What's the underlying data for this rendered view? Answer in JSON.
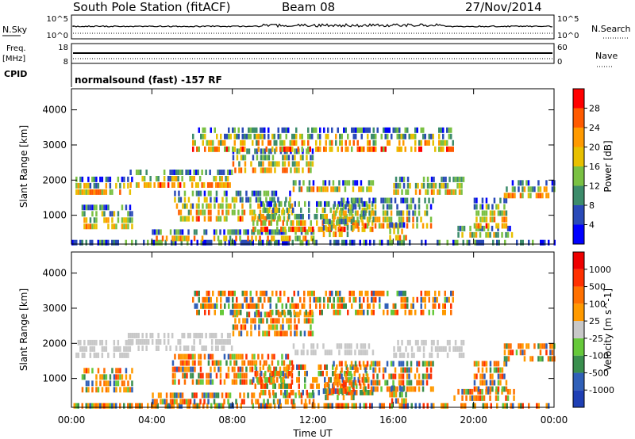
{
  "header": {
    "station": "South Pole Station (fitACF)",
    "beam": "Beam 08",
    "date": "27/Nov/2014"
  },
  "top_panels": {
    "nsky_label": "N.Sky",
    "nsearch_label": "N.Search",
    "freq_label": "Freq.",
    "freq_unit": "[MHz]",
    "nave_label": "Nave",
    "cpid_label": "CPID",
    "cpid_text": "normalsound (fast) -157 RF",
    "noise_ticks": [
      "10^5",
      "10^0"
    ],
    "freq_ticks": [
      "18",
      "8"
    ],
    "nave_ticks": [
      "60",
      "0"
    ]
  },
  "chart_data": [
    {
      "type": "heatmap",
      "quantity": "Power",
      "xlabel": "",
      "ylabel": "Slant Range [km]",
      "xlim": [
        0,
        24
      ],
      "ylim": [
        180,
        4600
      ],
      "xticks": [
        "00:00",
        "04:00",
        "08:00",
        "12:00",
        "16:00",
        "20:00",
        "00:00"
      ],
      "yticks": [
        1000,
        2000,
        3000,
        4000
      ],
      "colorbar": {
        "label": "Power [dB]",
        "ticks": [
          4,
          8,
          12,
          16,
          20,
          24,
          28
        ],
        "range": [
          0,
          32
        ],
        "colors": [
          "#0000ff",
          "#2a4ab8",
          "#3d8c6b",
          "#7ac143",
          "#e8c000",
          "#ff9a00",
          "#ff5a00",
          "#ff0000"
        ]
      }
    },
    {
      "type": "heatmap",
      "quantity": "Velocity",
      "xlabel": "Time UT",
      "ylabel": "Slant Range [km]",
      "xlim": [
        0,
        24
      ],
      "ylim": [
        180,
        4600
      ],
      "xticks": [
        "00:00",
        "04:00",
        "08:00",
        "12:00",
        "16:00",
        "20:00",
        "00:00"
      ],
      "yticks": [
        1000,
        2000,
        3000,
        4000
      ],
      "colorbar": {
        "label": "Velocity [m s^-1]",
        "ticks": [
          "1000",
          "500",
          "100",
          "25",
          "-25",
          "-100",
          "-500",
          "-1000"
        ],
        "colors": [
          "#1f3fb4",
          "#3060b8",
          "#3a8f4e",
          "#66c93a",
          "#c8c8c8",
          "#ff9a00",
          "#ff7000",
          "#ff3000",
          "#ee0000"
        ]
      }
    }
  ]
}
